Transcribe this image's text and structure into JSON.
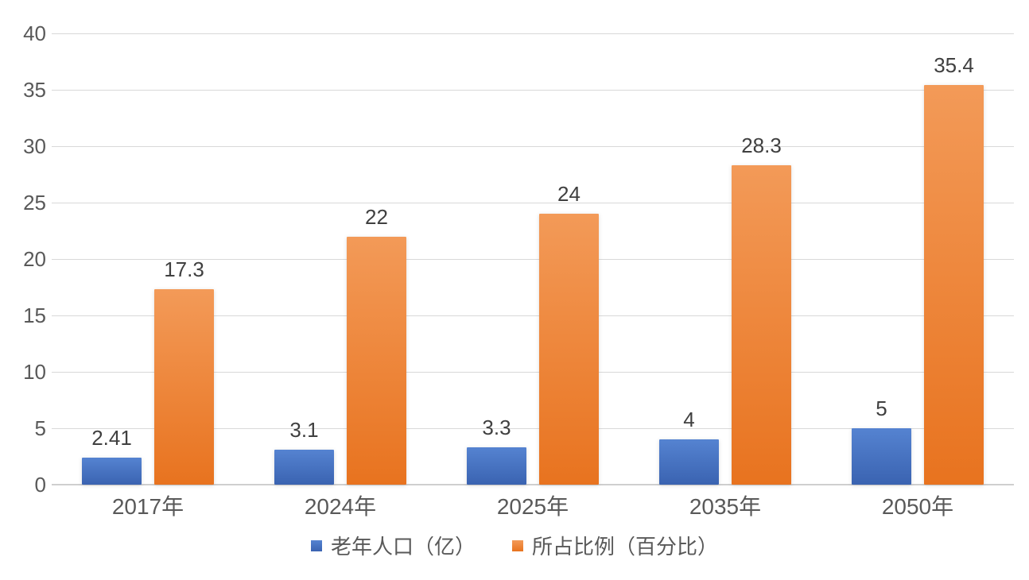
{
  "chart_data": {
    "type": "bar",
    "title": "",
    "xlabel": "",
    "ylabel": "",
    "categories": [
      "2017年",
      "2024年",
      "2025年",
      "2035年",
      "2050年"
    ],
    "series": [
      {
        "name": "老年人口（亿）",
        "values": [
          2.41,
          3.1,
          3.3,
          4,
          5
        ],
        "data_labels": [
          "2.41",
          "3.1",
          "3.3",
          "4",
          "5"
        ],
        "color_top": "#5583d1",
        "color_bottom": "#3a63b1"
      },
      {
        "name": "所占比例（百分比）",
        "values": [
          17.3,
          22,
          24,
          28.3,
          35.4
        ],
        "data_labels": [
          "17.3",
          "22",
          "24",
          "28.3",
          "35.4"
        ],
        "color_top": "#f39a58",
        "color_bottom": "#e8731f"
      }
    ],
    "ylim": [
      0,
      40
    ],
    "yticks": [
      0,
      5,
      10,
      15,
      20,
      25,
      30,
      35,
      40
    ],
    "grid": true,
    "legend_position": "bottom"
  },
  "colors": {
    "background": "#ffffff",
    "gridline": "#d9d9d9",
    "axis_line": "#cfcfcf",
    "tick_label": "#595959",
    "data_label": "#404040",
    "legend_text": "#595959"
  }
}
